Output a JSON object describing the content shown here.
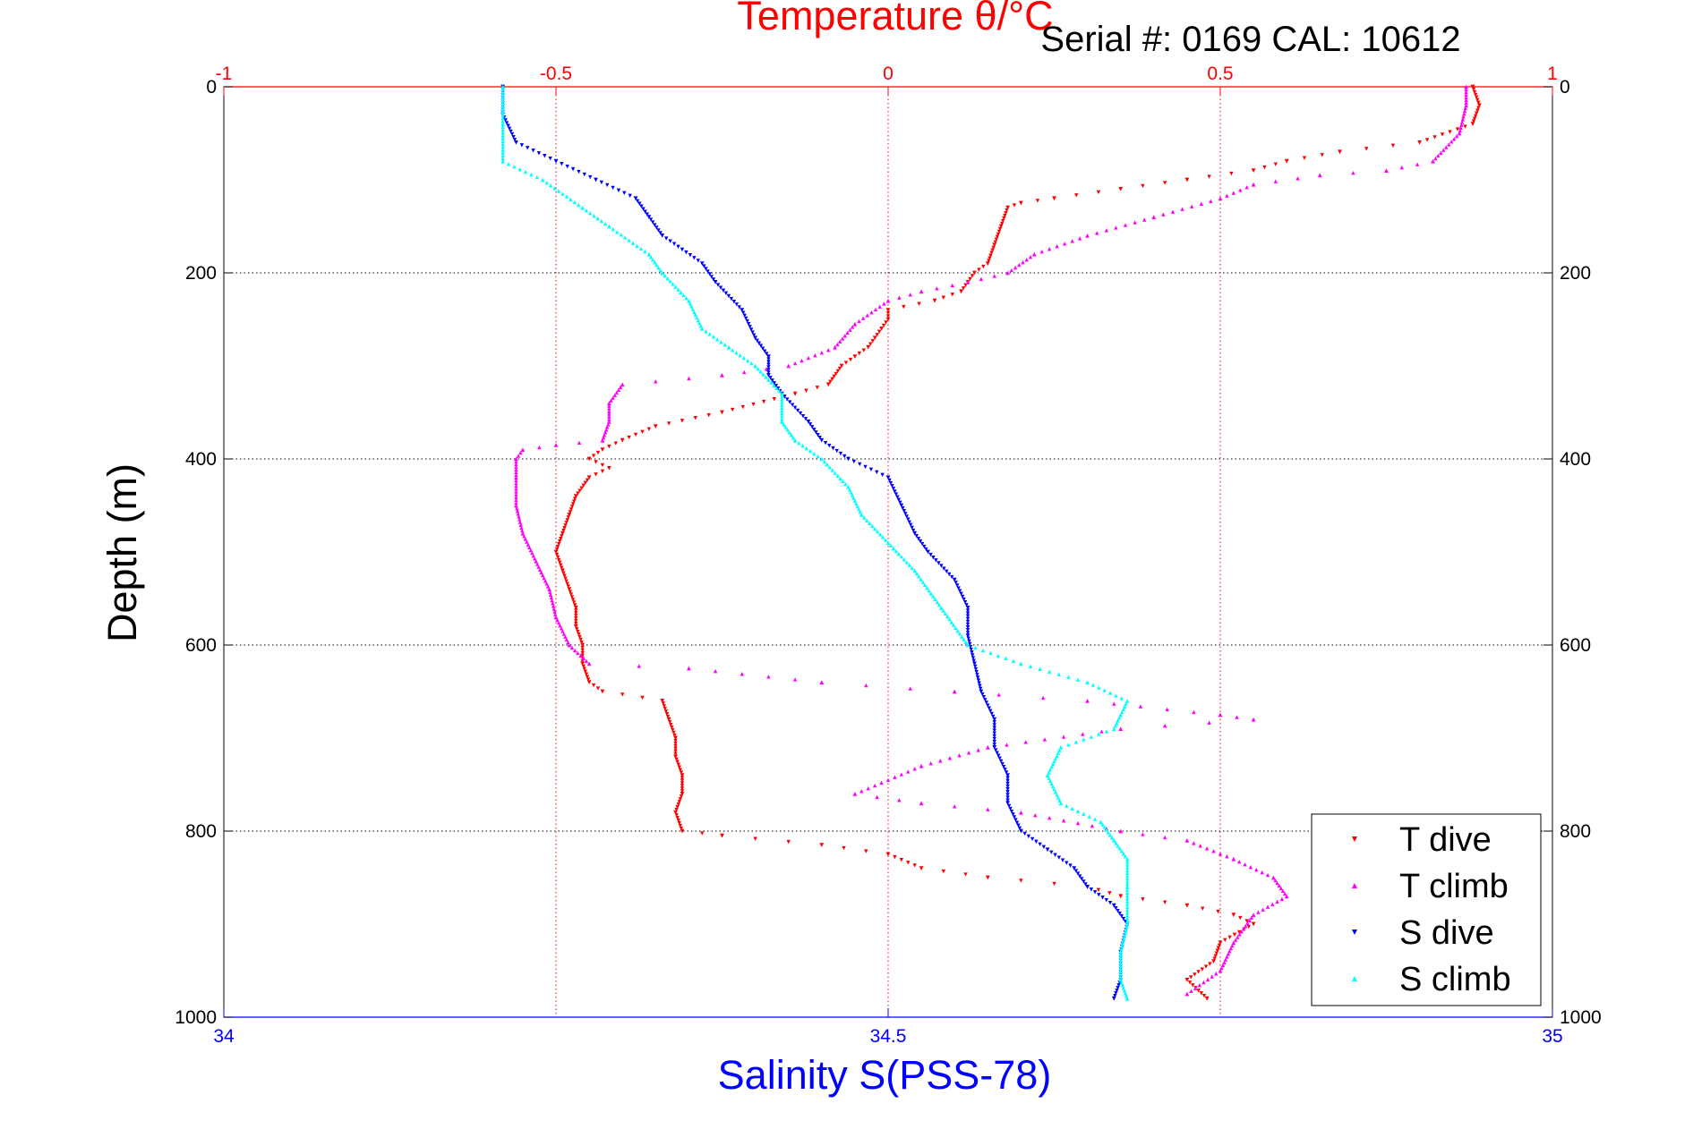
{
  "chart_data": {
    "type": "scatter",
    "title": "Temperature θ/°C",
    "annotation": "Serial #: 0169 CAL: 10612",
    "ylabel": "Depth (m)",
    "xlabel_bottom": "Salinity S(PSS-78)",
    "xlabel_top": "Temperature θ/°C",
    "y_axis": {
      "range": [
        0,
        1000
      ],
      "reversed": true,
      "ticks": [
        0,
        200,
        400,
        600,
        800,
        1000
      ],
      "tick_labels": [
        "0",
        "200",
        "400",
        "600",
        "800",
        "1000"
      ]
    },
    "x_top": {
      "range": [
        -1,
        1
      ],
      "ticks": [
        -1,
        -0.5,
        0,
        0.5,
        1
      ],
      "tick_labels": [
        "-1",
        "-0.5",
        "0",
        "0.5",
        "1"
      ],
      "color": "#ff0000"
    },
    "x_bottom": {
      "range": [
        34,
        35
      ],
      "ticks": [
        34,
        34.5,
        35
      ],
      "tick_labels": [
        "34",
        "34.5",
        "35"
      ],
      "color": "#0000ff"
    },
    "grid": true,
    "legend": {
      "position": "bottom-right"
    },
    "colors": {
      "title": "#ff0000",
      "salinity_axis": "#0000ff",
      "grid_vertical": "#ff0000",
      "grid_horizontal": "#000000"
    },
    "series": [
      {
        "name": "T dive",
        "axis": "temperature",
        "color": "#ff0000",
        "marker": "triangle-down",
        "points": [
          [
            0.88,
            0
          ],
          [
            0.89,
            20
          ],
          [
            0.88,
            40
          ],
          [
            0.8,
            60
          ],
          [
            0.68,
            70
          ],
          [
            0.6,
            80
          ],
          [
            0.55,
            90
          ],
          [
            0.45,
            100
          ],
          [
            0.35,
            110
          ],
          [
            0.25,
            120
          ],
          [
            0.2,
            125
          ],
          [
            0.18,
            130
          ],
          [
            0.17,
            150
          ],
          [
            0.16,
            170
          ],
          [
            0.15,
            190
          ],
          [
            0.13,
            200
          ],
          [
            0.12,
            210
          ],
          [
            0.11,
            220
          ],
          [
            0.07,
            230
          ],
          [
            0.0,
            240
          ],
          [
            0.0,
            250
          ],
          [
            -0.01,
            260
          ],
          [
            -0.02,
            270
          ],
          [
            -0.03,
            280
          ],
          [
            -0.05,
            290
          ],
          [
            -0.07,
            300
          ],
          [
            -0.09,
            320
          ],
          [
            -0.14,
            330
          ],
          [
            -0.25,
            350
          ],
          [
            -0.35,
            365
          ],
          [
            -0.4,
            380
          ],
          [
            -0.43,
            390
          ],
          [
            -0.45,
            400
          ],
          [
            -0.42,
            410
          ],
          [
            -0.45,
            420
          ],
          [
            -0.47,
            440
          ],
          [
            -0.48,
            460
          ],
          [
            -0.49,
            480
          ],
          [
            -0.5,
            500
          ],
          [
            -0.49,
            520
          ],
          [
            -0.48,
            540
          ],
          [
            -0.47,
            560
          ],
          [
            -0.47,
            580
          ],
          [
            -0.46,
            600
          ],
          [
            -0.46,
            620
          ],
          [
            -0.45,
            640
          ],
          [
            -0.43,
            650
          ],
          [
            -0.34,
            660
          ],
          [
            -0.33,
            680
          ],
          [
            -0.32,
            700
          ],
          [
            -0.32,
            720
          ],
          [
            -0.31,
            740
          ],
          [
            -0.31,
            760
          ],
          [
            -0.32,
            780
          ],
          [
            -0.31,
            800
          ],
          [
            -0.25,
            805
          ],
          [
            -0.1,
            815
          ],
          [
            0.0,
            825
          ],
          [
            0.05,
            840
          ],
          [
            0.15,
            850
          ],
          [
            0.3,
            860
          ],
          [
            0.35,
            870
          ],
          [
            0.45,
            880
          ],
          [
            0.52,
            890
          ],
          [
            0.55,
            900
          ],
          [
            0.5,
            920
          ],
          [
            0.49,
            940
          ],
          [
            0.45,
            960
          ],
          [
            0.48,
            980
          ]
        ]
      },
      {
        "name": "T climb",
        "axis": "temperature",
        "color": "#ff00ff",
        "marker": "triangle-up",
        "points": [
          [
            0.87,
            0
          ],
          [
            0.87,
            20
          ],
          [
            0.86,
            50
          ],
          [
            0.82,
            80
          ],
          [
            0.75,
            90
          ],
          [
            0.65,
            95
          ],
          [
            0.55,
            105
          ],
          [
            0.5,
            120
          ],
          [
            0.4,
            140
          ],
          [
            0.3,
            160
          ],
          [
            0.22,
            180
          ],
          [
            0.18,
            200
          ],
          [
            0.12,
            210
          ],
          [
            0.05,
            220
          ],
          [
            0.0,
            230
          ],
          [
            -0.05,
            255
          ],
          [
            -0.08,
            280
          ],
          [
            -0.15,
            300
          ],
          [
            -0.25,
            310
          ],
          [
            -0.4,
            320
          ],
          [
            -0.42,
            340
          ],
          [
            -0.42,
            360
          ],
          [
            -0.43,
            380
          ],
          [
            -0.5,
            385
          ],
          [
            -0.55,
            390
          ],
          [
            -0.56,
            400
          ],
          [
            -0.56,
            420
          ],
          [
            -0.56,
            450
          ],
          [
            -0.55,
            480
          ],
          [
            -0.53,
            510
          ],
          [
            -0.51,
            540
          ],
          [
            -0.5,
            570
          ],
          [
            -0.48,
            600
          ],
          [
            -0.45,
            620
          ],
          [
            -0.3,
            625
          ],
          [
            -0.1,
            640
          ],
          [
            0.1,
            650
          ],
          [
            0.3,
            660
          ],
          [
            0.5,
            675
          ],
          [
            0.55,
            680
          ],
          [
            0.35,
            690
          ],
          [
            0.15,
            710
          ],
          [
            0.05,
            730
          ],
          [
            -0.05,
            760
          ],
          [
            0.05,
            770
          ],
          [
            0.2,
            780
          ],
          [
            0.35,
            800
          ],
          [
            0.45,
            810
          ],
          [
            0.52,
            830
          ],
          [
            0.58,
            850
          ],
          [
            0.6,
            870
          ],
          [
            0.55,
            890
          ],
          [
            0.52,
            920
          ],
          [
            0.5,
            950
          ],
          [
            0.45,
            975
          ]
        ]
      },
      {
        "name": "S dive",
        "axis": "salinity",
        "color": "#0000ff",
        "marker": "triangle-down",
        "points": [
          [
            34.21,
            0
          ],
          [
            34.21,
            30
          ],
          [
            34.22,
            60
          ],
          [
            34.25,
            80
          ],
          [
            34.28,
            100
          ],
          [
            34.31,
            120
          ],
          [
            34.32,
            140
          ],
          [
            34.33,
            160
          ],
          [
            34.36,
            190
          ],
          [
            34.37,
            210
          ],
          [
            34.39,
            240
          ],
          [
            34.4,
            270
          ],
          [
            34.41,
            290
          ],
          [
            34.41,
            310
          ],
          [
            34.42,
            330
          ],
          [
            34.44,
            360
          ],
          [
            34.45,
            380
          ],
          [
            34.47,
            400
          ],
          [
            34.5,
            420
          ],
          [
            34.51,
            450
          ],
          [
            34.52,
            480
          ],
          [
            34.53,
            500
          ],
          [
            34.55,
            530
          ],
          [
            34.56,
            560
          ],
          [
            34.56,
            590
          ],
          [
            34.565,
            620
          ],
          [
            34.57,
            650
          ],
          [
            34.58,
            680
          ],
          [
            34.58,
            710
          ],
          [
            34.59,
            740
          ],
          [
            34.59,
            770
          ],
          [
            34.6,
            800
          ],
          [
            34.62,
            820
          ],
          [
            34.64,
            840
          ],
          [
            34.65,
            860
          ],
          [
            34.67,
            880
          ],
          [
            34.68,
            900
          ],
          [
            34.675,
            930
          ],
          [
            34.675,
            960
          ],
          [
            34.67,
            980
          ]
        ]
      },
      {
        "name": "S climb",
        "axis": "salinity",
        "color": "#00ffff",
        "marker": "triangle-up",
        "points": [
          [
            34.21,
            0
          ],
          [
            34.21,
            40
          ],
          [
            34.21,
            80
          ],
          [
            34.24,
            100
          ],
          [
            34.27,
            130
          ],
          [
            34.29,
            150
          ],
          [
            34.32,
            180
          ],
          [
            34.33,
            200
          ],
          [
            34.35,
            230
          ],
          [
            34.36,
            260
          ],
          [
            34.38,
            280
          ],
          [
            34.4,
            300
          ],
          [
            34.42,
            330
          ],
          [
            34.42,
            360
          ],
          [
            34.43,
            380
          ],
          [
            34.45,
            400
          ],
          [
            34.47,
            430
          ],
          [
            34.48,
            460
          ],
          [
            34.5,
            490
          ],
          [
            34.52,
            520
          ],
          [
            34.54,
            560
          ],
          [
            34.56,
            600
          ],
          [
            34.6,
            620
          ],
          [
            34.65,
            640
          ],
          [
            34.68,
            660
          ],
          [
            34.67,
            690
          ],
          [
            34.63,
            710
          ],
          [
            34.62,
            740
          ],
          [
            34.63,
            770
          ],
          [
            34.66,
            790
          ],
          [
            34.67,
            810
          ],
          [
            34.68,
            830
          ],
          [
            34.68,
            860
          ],
          [
            34.68,
            900
          ],
          [
            34.675,
            930
          ],
          [
            34.675,
            960
          ],
          [
            34.68,
            980
          ]
        ]
      }
    ]
  }
}
